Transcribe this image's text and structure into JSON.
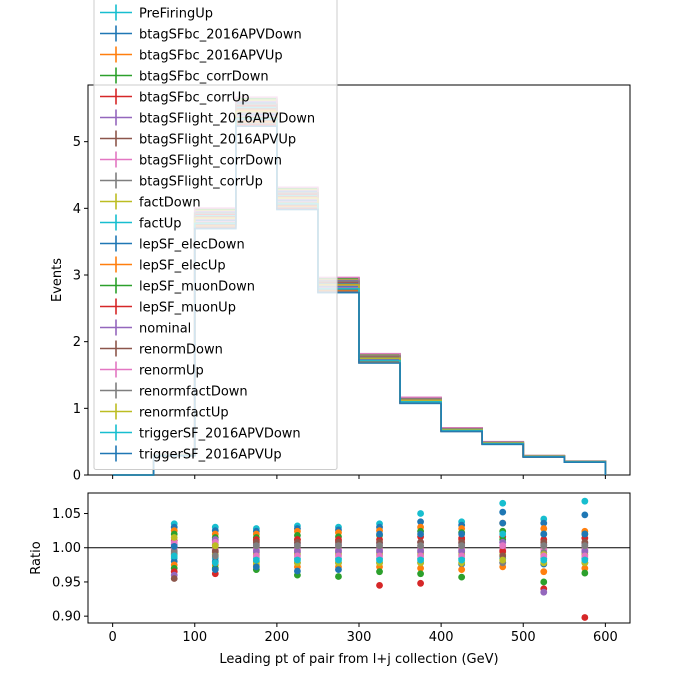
{
  "chart_data": [
    {
      "type": "line",
      "ylabel": "Events",
      "xlim": [
        -30,
        630
      ],
      "ylim": [
        0,
        5.85
      ],
      "yticks": [
        0,
        1,
        2,
        3,
        4,
        5
      ],
      "xticks": [
        0,
        100,
        200,
        300,
        400,
        500,
        600
      ],
      "bin_edges": [
        0,
        50,
        100,
        150,
        200,
        250,
        300,
        350,
        400,
        450,
        500,
        550,
        600
      ],
      "nominal": [
        0.0,
        0.3,
        3.85,
        5.45,
        4.15,
        2.85,
        1.75,
        1.12,
        0.68,
        0.48,
        0.28,
        0.2
      ],
      "legend_position": "top-left",
      "legend_entries": [
        "PreFiringUp",
        "btagSFbc_2016APVDown",
        "btagSFbc_2016APVUp",
        "btagSFbc_corrDown",
        "btagSFbc_corrUp",
        "btagSFlight_2016APVDown",
        "btagSFlight_2016APVUp",
        "btagSFlight_corrDown",
        "btagSFlight_corrUp",
        "factDown",
        "factUp",
        "lepSF_elecDown",
        "lepSF_elecUp",
        "lepSF_muonDown",
        "lepSF_muonUp",
        "nominal",
        "renormDown",
        "renormUp",
        "renormfactDown",
        "renormfactUp",
        "triggerSF_2016APVDown",
        "triggerSF_2016APVUp"
      ],
      "series_colors": [
        "#17becf",
        "#1f77b4",
        "#ff7f0e",
        "#2ca02c",
        "#d62728",
        "#9467bd",
        "#8c564b",
        "#e377c2",
        "#7f7f7f",
        "#bcbd22",
        "#17becf",
        "#1f77b4",
        "#ff7f0e",
        "#2ca02c",
        "#d62728",
        "#9467bd",
        "#8c564b",
        "#e377c2",
        "#7f7f7f",
        "#bcbd22",
        "#17becf",
        "#1f77b4"
      ],
      "grid": false
    },
    {
      "type": "scatter",
      "xlabel": "Leading pt of pair from l+j collection (GeV)",
      "ylabel": "Ratio",
      "xlim": [
        -30,
        630
      ],
      "ylim": [
        0.89,
        1.08
      ],
      "yticks": [
        0.9,
        0.95,
        1.0,
        1.05
      ],
      "ytick_labels": [
        "0.90",
        "0.95",
        "1.00",
        "1.05"
      ],
      "reference_line": 1.0,
      "bin_centers": [
        75,
        125,
        175,
        225,
        275,
        325,
        375,
        425,
        475,
        525,
        575
      ],
      "points": [
        {
          "x": 75,
          "values": [
            1.035,
            1.03,
            1.025,
            1.02,
            1.01,
            1.005,
            1.0,
            0.998,
            0.995,
            0.99,
            0.985,
            0.98,
            0.975,
            0.97,
            0.965,
            0.96,
            0.955,
            1.008,
            0.992,
            1.015,
            0.988,
            1.002
          ]
        },
        {
          "x": 125,
          "values": [
            1.03,
            1.025,
            1.02,
            1.015,
            1.01,
            1.005,
            1.0,
            0.997,
            0.993,
            0.99,
            0.985,
            0.98,
            0.975,
            0.97,
            0.962,
            1.012,
            0.995,
            1.008,
            0.988,
            1.003,
            0.978,
            0.968
          ]
        },
        {
          "x": 175,
          "values": [
            1.028,
            1.024,
            1.02,
            1.015,
            1.01,
            1.005,
            1.0,
            0.997,
            0.993,
            0.99,
            0.985,
            0.98,
            0.975,
            0.968,
            1.012,
            0.995,
            1.008,
            0.988,
            1.003,
            0.978,
            0.982,
            0.972
          ]
        },
        {
          "x": 225,
          "values": [
            1.032,
            1.028,
            1.024,
            1.018,
            1.012,
            1.006,
            1.0,
            0.997,
            0.993,
            0.99,
            0.984,
            0.978,
            0.972,
            0.96,
            1.012,
            0.995,
            1.008,
            0.988,
            1.003,
            0.978,
            0.982,
            0.966
          ]
        },
        {
          "x": 275,
          "values": [
            1.03,
            1.026,
            1.022,
            1.016,
            1.01,
            1.005,
            1.0,
            0.997,
            0.993,
            0.99,
            0.984,
            0.978,
            0.972,
            0.958,
            1.012,
            0.995,
            1.008,
            0.988,
            1.003,
            0.978,
            0.982,
            0.968
          ]
        },
        {
          "x": 325,
          "values": [
            1.035,
            1.03,
            1.025,
            1.018,
            1.012,
            1.006,
            1.0,
            0.997,
            0.993,
            0.99,
            0.984,
            0.978,
            0.972,
            0.965,
            0.945,
            0.995,
            1.008,
            0.988,
            1.003,
            0.978,
            0.982,
            1.02
          ]
        },
        {
          "x": 375,
          "values": [
            1.05,
            1.038,
            1.03,
            1.024,
            1.016,
            1.008,
            1.0,
            0.997,
            0.993,
            0.99,
            0.984,
            0.978,
            0.97,
            0.962,
            0.948,
            0.995,
            1.008,
            0.988,
            1.003,
            0.978,
            0.982,
            1.02
          ]
        },
        {
          "x": 425,
          "values": [
            1.038,
            1.033,
            1.028,
            1.022,
            1.014,
            1.006,
            1.0,
            0.997,
            0.993,
            0.99,
            0.984,
            0.976,
            0.968,
            0.957,
            1.012,
            0.995,
            1.008,
            0.988,
            1.003,
            0.978,
            0.982,
            1.02
          ]
        },
        {
          "x": 475,
          "values": [
            1.065,
            1.052,
            1.036,
            1.024,
            1.016,
            1.008,
            1.0,
            0.997,
            0.993,
            0.99,
            0.984,
            0.978,
            0.972,
            1.012,
            0.995,
            1.008,
            0.988,
            1.003,
            0.978,
            0.982,
            1.02,
            1.036
          ]
        },
        {
          "x": 525,
          "values": [
            1.042,
            1.036,
            1.028,
            1.02,
            1.012,
            1.005,
            1.0,
            0.997,
            0.993,
            0.99,
            0.984,
            0.976,
            0.965,
            0.95,
            0.94,
            0.935,
            1.008,
            0.988,
            1.003,
            0.978,
            0.982,
            1.02
          ]
        },
        {
          "x": 575,
          "values": [
            1.068,
            1.048,
            1.024,
            1.02,
            1.014,
            1.006,
            1.0,
            0.997,
            0.993,
            0.99,
            0.984,
            0.978,
            0.97,
            0.963,
            0.898,
            0.995,
            1.008,
            0.988,
            1.003,
            0.978,
            0.982,
            1.02
          ]
        }
      ],
      "grid": false
    }
  ]
}
